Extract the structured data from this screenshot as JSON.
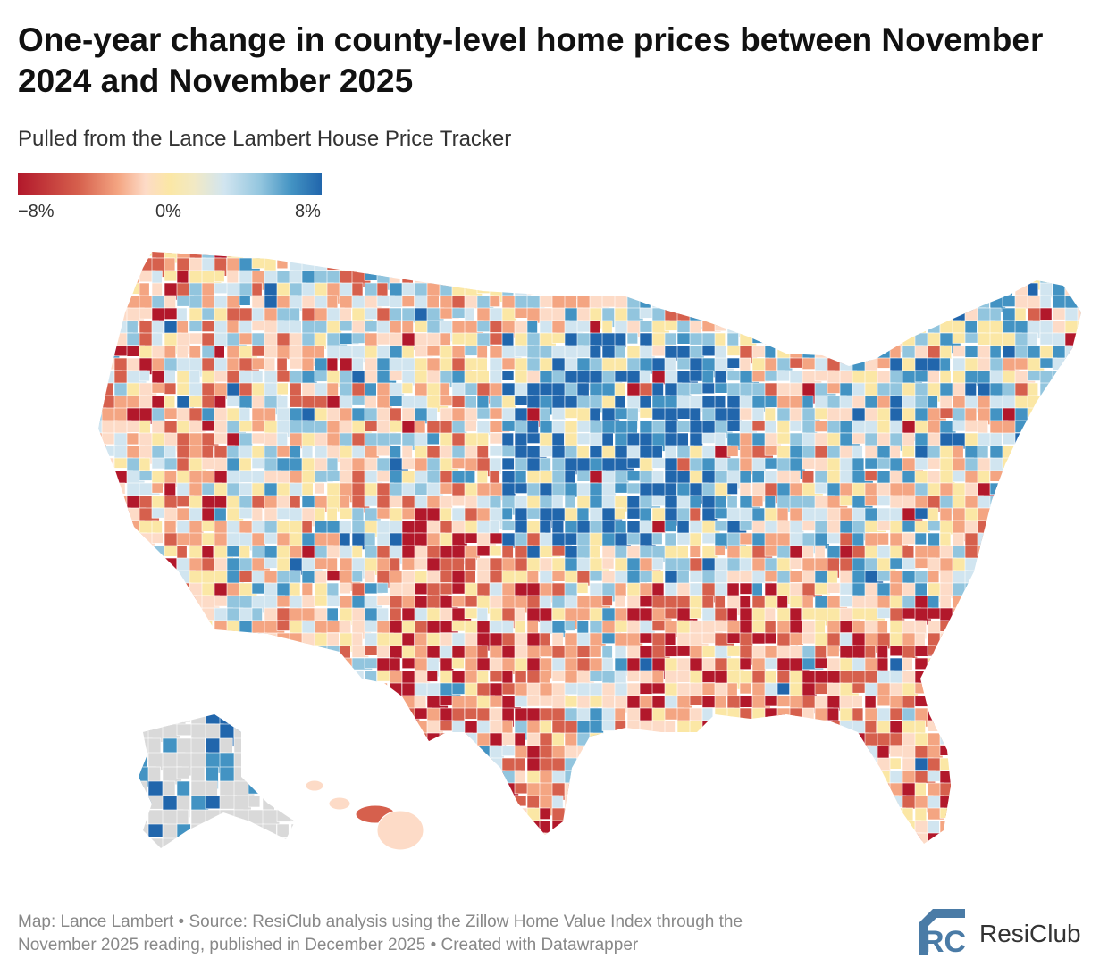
{
  "title": "One-year change in county-level home prices between November 2024 and November 2025",
  "subtitle": "Pulled from the Lance Lambert House Price Tracker",
  "legend": {
    "min_label": "−8%",
    "mid_label": "0%",
    "max_label": "8%",
    "colors": [
      "#b2182b",
      "#d6604d",
      "#f4a582",
      "#fddbc7",
      "#fbe7a5",
      "#d1e5f0",
      "#92c5de",
      "#4393c3",
      "#2166ac"
    ]
  },
  "footer": {
    "line1": "Map: Lance Lambert • Source: ResiClub analysis using the Zillow Home Value Index through the",
    "line2": "November 2025 reading, published in December 2025 • Created with Datawrapper"
  },
  "logo": {
    "mark_text": "RC",
    "brand_text": "ResiClub",
    "color": "#4a7ba6"
  },
  "map": {
    "nodata_color": "#d9d9d9",
    "border_color": "#ffffff"
  }
}
